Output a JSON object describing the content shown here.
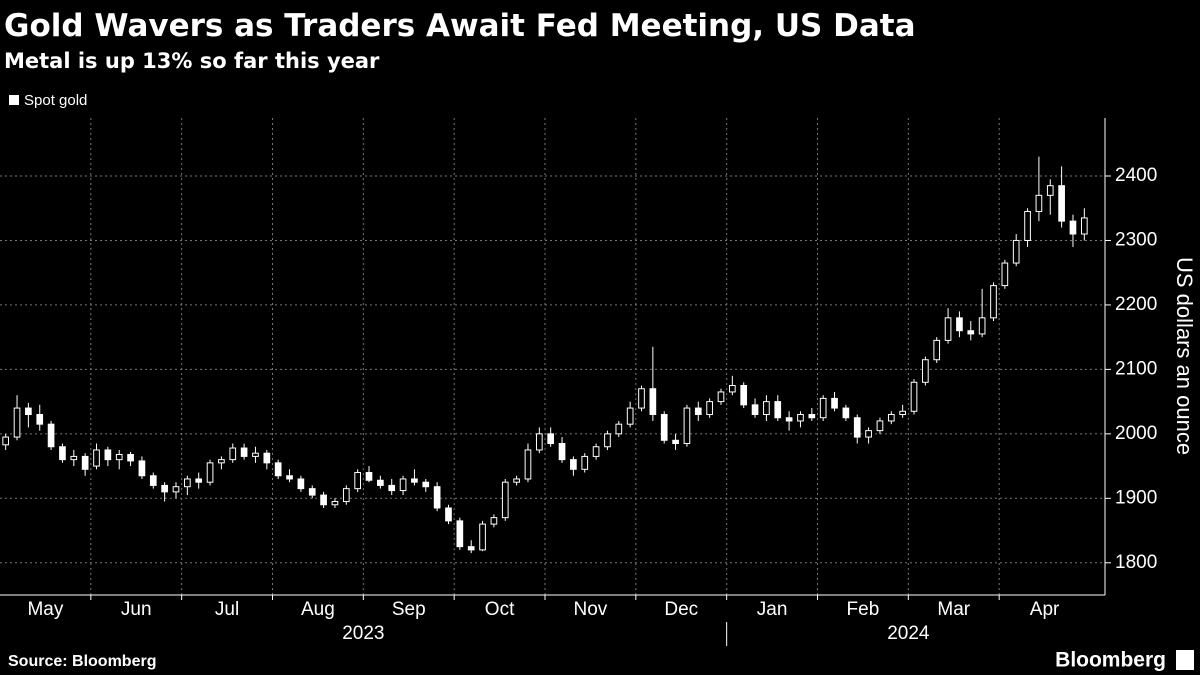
{
  "chart_data": {
    "type": "candlestick",
    "title": "Gold Wavers as Traders Await Fed Meeting, US Data",
    "subtitle": "Metal is up 13% so far this year",
    "y_label": "US dollars an ounce",
    "source": "Source: Bloomberg",
    "brand": "Bloomberg",
    "color": "#ffffff",
    "grid": true,
    "ylim": [
      1750,
      2490
    ],
    "yticks": [
      1800,
      1900,
      2000,
      2100,
      2200,
      2300,
      2400
    ],
    "series": [
      {
        "name": "Spot gold",
        "color": "#ffffff"
      }
    ],
    "years": [
      {
        "label": "2023",
        "months": [
          {
            "label": "May",
            "ohlc": [
              [
                1983,
                2000,
                1975,
                1995
              ],
              [
                1995,
                2060,
                1990,
                2040
              ],
              [
                2040,
                2048,
                2010,
                2030
              ],
              [
                2030,
                2045,
                2005,
                2015
              ],
              [
                2015,
                2020,
                1975,
                1980
              ],
              [
                1980,
                1985,
                1955,
                1960
              ],
              [
                1960,
                1975,
                1950,
                1965
              ],
              [
                1965,
                1970,
                1935,
                1945
              ]
            ]
          },
          {
            "label": "Jun",
            "ohlc": [
              [
                1950,
                1985,
                1945,
                1975
              ],
              [
                1975,
                1980,
                1950,
                1960
              ],
              [
                1960,
                1975,
                1945,
                1968
              ],
              [
                1968,
                1972,
                1950,
                1958
              ],
              [
                1958,
                1965,
                1930,
                1935
              ],
              [
                1935,
                1940,
                1915,
                1920
              ],
              [
                1920,
                1925,
                1895,
                1910
              ],
              [
                1910,
                1925,
                1900,
                1918
              ]
            ]
          },
          {
            "label": "Jul",
            "ohlc": [
              [
                1918,
                1935,
                1905,
                1930
              ],
              [
                1930,
                1940,
                1915,
                1925
              ],
              [
                1925,
                1960,
                1920,
                1955
              ],
              [
                1955,
                1965,
                1945,
                1960
              ],
              [
                1960,
                1985,
                1955,
                1978
              ],
              [
                1978,
                1985,
                1960,
                1965
              ],
              [
                1965,
                1980,
                1955,
                1970
              ],
              [
                1970,
                1975,
                1945,
                1955
              ]
            ]
          },
          {
            "label": "Aug",
            "ohlc": [
              [
                1955,
                1960,
                1930,
                1935
              ],
              [
                1935,
                1945,
                1925,
                1930
              ],
              [
                1930,
                1935,
                1910,
                1915
              ],
              [
                1915,
                1920,
                1900,
                1905
              ],
              [
                1905,
                1910,
                1885,
                1890
              ],
              [
                1890,
                1900,
                1885,
                1895
              ],
              [
                1895,
                1920,
                1890,
                1915
              ],
              [
                1915,
                1945,
                1910,
                1940
              ]
            ]
          },
          {
            "label": "Sep",
            "ohlc": [
              [
                1940,
                1950,
                1925,
                1928
              ],
              [
                1928,
                1935,
                1915,
                1920
              ],
              [
                1920,
                1930,
                1905,
                1912
              ],
              [
                1912,
                1935,
                1905,
                1930
              ],
              [
                1930,
                1945,
                1920,
                1925
              ],
              [
                1925,
                1930,
                1910,
                1918
              ],
              [
                1918,
                1925,
                1880,
                1885
              ],
              [
                1885,
                1890,
                1860,
                1865
              ]
            ]
          },
          {
            "label": "Oct",
            "ohlc": [
              [
                1865,
                1870,
                1820,
                1825
              ],
              [
                1825,
                1835,
                1815,
                1820
              ],
              [
                1820,
                1865,
                1818,
                1860
              ],
              [
                1860,
                1875,
                1855,
                1870
              ],
              [
                1870,
                1930,
                1865,
                1925
              ],
              [
                1925,
                1935,
                1920,
                1930
              ],
              [
                1930,
                1985,
                1925,
                1975
              ],
              [
                1975,
                2010,
                1970,
                2000
              ]
            ]
          },
          {
            "label": "Nov",
            "ohlc": [
              [
                2000,
                2010,
                1980,
                1985
              ],
              [
                1985,
                1995,
                1955,
                1960
              ],
              [
                1960,
                1965,
                1935,
                1945
              ],
              [
                1945,
                1970,
                1940,
                1965
              ],
              [
                1965,
                1985,
                1960,
                1980
              ],
              [
                1980,
                2005,
                1975,
                2000
              ],
              [
                2000,
                2020,
                1995,
                2015
              ],
              [
                2015,
                2050,
                2010,
                2040
              ]
            ]
          },
          {
            "label": "Dec",
            "ohlc": [
              [
                2040,
                2075,
                2035,
                2070
              ],
              [
                2070,
                2135,
                2020,
                2030
              ],
              [
                2030,
                2035,
                1985,
                1990
              ],
              [
                1990,
                2000,
                1975,
                1985
              ],
              [
                1985,
                2045,
                1980,
                2040
              ],
              [
                2040,
                2050,
                2020,
                2030
              ],
              [
                2030,
                2055,
                2025,
                2050
              ],
              [
                2050,
                2070,
                2045,
                2065
              ]
            ]
          }
        ]
      },
      {
        "label": "2024",
        "months": [
          {
            "label": "Jan",
            "ohlc": [
              [
                2065,
                2090,
                2060,
                2075
              ],
              [
                2075,
                2080,
                2040,
                2045
              ],
              [
                2045,
                2055,
                2025,
                2030
              ],
              [
                2030,
                2060,
                2020,
                2050
              ],
              [
                2050,
                2060,
                2020,
                2025
              ],
              [
                2025,
                2035,
                2005,
                2020
              ],
              [
                2020,
                2035,
                2010,
                2030
              ],
              [
                2030,
                2040,
                2020,
                2025
              ]
            ]
          },
          {
            "label": "Feb",
            "ohlc": [
              [
                2025,
                2060,
                2020,
                2055
              ],
              [
                2055,
                2065,
                2035,
                2040
              ],
              [
                2040,
                2045,
                2020,
                2025
              ],
              [
                2025,
                2030,
                1985,
                1995
              ],
              [
                1995,
                2010,
                1985,
                2005
              ],
              [
                2005,
                2025,
                2000,
                2020
              ],
              [
                2020,
                2035,
                2015,
                2030
              ],
              [
                2030,
                2045,
                2025,
                2035
              ]
            ]
          },
          {
            "label": "Mar",
            "ohlc": [
              [
                2035,
                2085,
                2030,
                2080
              ],
              [
                2080,
                2120,
                2075,
                2115
              ],
              [
                2115,
                2150,
                2110,
                2145
              ],
              [
                2145,
                2195,
                2140,
                2180
              ],
              [
                2180,
                2190,
                2150,
                2160
              ],
              [
                2160,
                2175,
                2145,
                2155
              ],
              [
                2155,
                2225,
                2150,
                2180
              ],
              [
                2180,
                2235,
                2175,
                2230
              ]
            ]
          },
          {
            "label": "Apr",
            "ohlc": [
              [
                2230,
                2270,
                2225,
                2265
              ],
              [
                2265,
                2310,
                2260,
                2300
              ],
              [
                2300,
                2350,
                2290,
                2345
              ],
              [
                2345,
                2430,
                2330,
                2370
              ],
              [
                2370,
                2395,
                2340,
                2385
              ],
              [
                2385,
                2415,
                2320,
                2330
              ],
              [
                2330,
                2340,
                2290,
                2310
              ],
              [
                2310,
                2350,
                2300,
                2335
              ]
            ]
          }
        ]
      }
    ]
  }
}
